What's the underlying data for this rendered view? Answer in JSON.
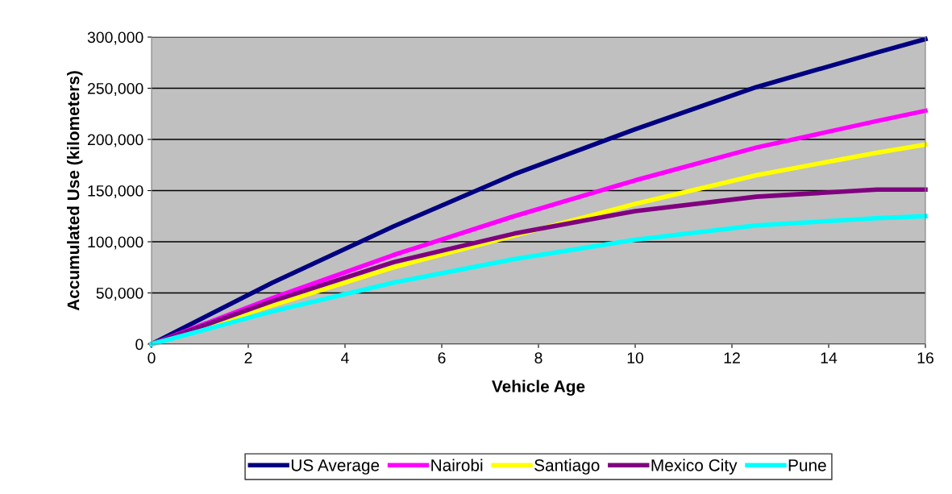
{
  "chart_data": {
    "type": "line",
    "xlabel": "Vehicle Age",
    "ylabel": "Accumulated Use (kilometers)",
    "x": [
      0,
      2.5,
      5,
      7.5,
      10,
      12.5,
      15,
      16
    ],
    "series": [
      {
        "name": "US Average",
        "color": "#000080",
        "values": [
          0,
          60000,
          115000,
          166000,
          210000,
          251000,
          285000,
          298000
        ]
      },
      {
        "name": "Nairobi",
        "color": "#ff00ff",
        "values": [
          0,
          45000,
          87000,
          125000,
          160000,
          192000,
          218000,
          228000
        ]
      },
      {
        "name": "Santiago",
        "color": "#ffff00",
        "values": [
          0,
          38000,
          75000,
          106000,
          137000,
          165000,
          187000,
          195000
        ]
      },
      {
        "name": "Mexico City",
        "color": "#800080",
        "values": [
          0,
          42000,
          80000,
          108000,
          130000,
          144000,
          151000,
          151000
        ]
      },
      {
        "name": "Pune",
        "color": "#00ffff",
        "values": [
          0,
          32000,
          60000,
          83000,
          102000,
          116000,
          123000,
          125000
        ]
      }
    ],
    "xlim": [
      0,
      16
    ],
    "xticks": [
      0,
      2,
      4,
      6,
      8,
      10,
      12,
      14,
      16
    ],
    "ylim": [
      0,
      300000
    ],
    "yticks": [
      {
        "value": 0,
        "label": "0"
      },
      {
        "value": 50000,
        "label": "50,000"
      },
      {
        "value": 100000,
        "label": "100,000"
      },
      {
        "value": 150000,
        "label": "150,000"
      },
      {
        "value": 200000,
        "label": "200,000"
      },
      {
        "value": 250000,
        "label": "250,000"
      },
      {
        "value": 300000,
        "label": "300,000"
      }
    ],
    "grid": "y",
    "legend": "bottom",
    "line_style": "solid",
    "marker": "none"
  }
}
